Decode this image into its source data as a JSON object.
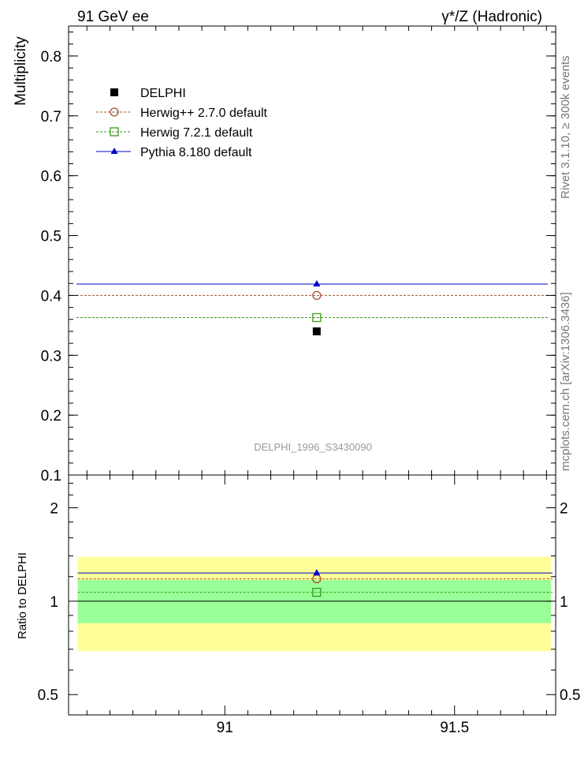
{
  "header": {
    "left": "91 GeV ee",
    "right": "γ*/Z (Hadronic)"
  },
  "side_text": {
    "rivet": "Rivet 3.1.10, ≥ 300k events",
    "mcplots": "mcplots.cern.ch [arXiv:1306.3436]"
  },
  "watermark": "DELPHI_1996_S3430090",
  "colors": {
    "data": "#000000",
    "herwigpp": "#a0522d",
    "herwig7": "#3a9a1a",
    "pythia": "#0000cc",
    "band_inner": "#99ff99",
    "band_outer": "#ffff99"
  },
  "chart_data": [
    {
      "type": "scatter",
      "ylabel": "Multiplicity",
      "xlim": [
        90.66,
        91.72
      ],
      "ylim": [
        0.1,
        0.85
      ],
      "yticks": [
        0.1,
        0.2,
        0.3,
        0.4,
        0.5,
        0.6,
        0.7,
        0.8
      ],
      "ytick_labels": [
        "0.1",
        "0.2",
        "0.3",
        "0.4",
        "0.5",
        "0.6",
        "0.7",
        "0.8"
      ],
      "legend": [
        {
          "key": "data",
          "label": "DELPHI"
        },
        {
          "key": "herwigpp",
          "label": "Herwig++ 2.7.0 default"
        },
        {
          "key": "herwig7",
          "label": "Herwig 7.2.1 default"
        },
        {
          "key": "pythia",
          "label": "Pythia 8.180 default"
        }
      ],
      "series": [
        {
          "key": "data",
          "name": "DELPHI",
          "x": 91.2,
          "y": 0.34,
          "style": "points"
        },
        {
          "key": "herwigpp",
          "name": "Herwig++ 2.7.0 default",
          "x": 91.2,
          "y": 0.4,
          "style": "dotted"
        },
        {
          "key": "herwig7",
          "name": "Herwig 7.2.1 default",
          "x": 91.2,
          "y": 0.363,
          "style": "dotted"
        },
        {
          "key": "pythia",
          "name": "Pythia 8.180 default",
          "x": 91.2,
          "y": 0.419,
          "style": "solid"
        }
      ]
    },
    {
      "type": "scatter",
      "ylabel": "Ratio to DELPHI",
      "xlabel": "",
      "xlim": [
        90.66,
        91.72
      ],
      "ylim": [
        0.43,
        2.55
      ],
      "log_y": true,
      "xticks": [
        91,
        91.5
      ],
      "xtick_labels": [
        "91",
        "91.5"
      ],
      "yticks": [
        0.5,
        1,
        2
      ],
      "ytick_labels": [
        "0.5",
        "1",
        "2"
      ],
      "bands": {
        "inner": [
          0.85,
          1.17
        ],
        "outer": [
          0.69,
          1.39
        ],
        "x_range": [
          90.68,
          91.71
        ]
      },
      "series": [
        {
          "key": "data",
          "name": "DELPHI",
          "y": 1.0,
          "style": "solid"
        },
        {
          "key": "herwigpp",
          "name": "Herwig++ 2.7.0 default",
          "x": 91.2,
          "y": 1.18,
          "style": "dotted"
        },
        {
          "key": "herwig7",
          "name": "Herwig 7.2.1 default",
          "x": 91.2,
          "y": 1.068,
          "style": "dotted"
        },
        {
          "key": "pythia",
          "name": "Pythia 8.180 default",
          "x": 91.2,
          "y": 1.233,
          "style": "solid"
        }
      ]
    }
  ]
}
